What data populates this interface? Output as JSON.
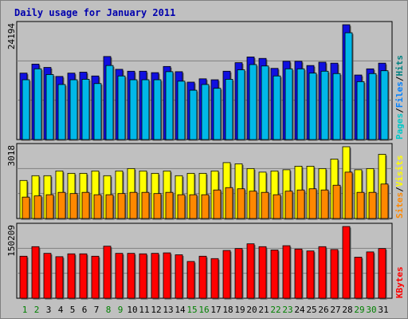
{
  "chart_data": {
    "type": "bar",
    "title": "Daily usage for January 2011",
    "categories": [
      "1",
      "2",
      "3",
      "4",
      "5",
      "6",
      "7",
      "8",
      "9",
      "10",
      "11",
      "12",
      "13",
      "14",
      "15",
      "16",
      "17",
      "18",
      "19",
      "20",
      "21",
      "22",
      "23",
      "24",
      "25",
      "26",
      "27",
      "28",
      "29",
      "30",
      "31"
    ],
    "weekend_days": [
      "1",
      "2",
      "8",
      "9",
      "15",
      "16",
      "22",
      "23",
      "29",
      "30"
    ],
    "panels": [
      {
        "name": "hits-files-pages",
        "ymax_label": "24194",
        "ylim": [
          0,
          24194
        ],
        "legend": [
          "Pages",
          "Files",
          "Hits"
        ],
        "series": [
          {
            "name": "Hits",
            "color": "#1010e0",
            "values": [
              14000,
              15900,
              15200,
              13300,
              14000,
              14200,
              13400,
              17500,
              14800,
              14400,
              14400,
              14100,
              15400,
              14300,
              12100,
              12800,
              12600,
              14400,
              16200,
              17400,
              17100,
              15000,
              16500,
              16500,
              15600,
              16300,
              16100,
              24194,
              13600,
              14900,
              16100
            ]
          },
          {
            "name": "Files",
            "color": "#00b8e8",
            "values": [
              12600,
              14900,
              13700,
              11600,
              12600,
              12700,
              11800,
              15600,
              13400,
              12600,
              12600,
              12600,
              14300,
              12300,
              10400,
              11600,
              10800,
              12700,
              14700,
              15800,
              15500,
              13400,
              14900,
              14900,
              14000,
              14400,
              13900,
              22500,
              12200,
              13900,
              14500
            ]
          },
          {
            "name": "Pages",
            "color": "#00c8c8",
            "values": []
          }
        ]
      },
      {
        "name": "visits-sites",
        "ymax_label": "3018",
        "ylim": [
          0,
          3018
        ],
        "legend": [
          "Sites",
          "Visits"
        ],
        "series": [
          {
            "name": "Visits",
            "color": "#ffff00",
            "values": [
              1600,
              1800,
              1800,
              2000,
              1900,
              1900,
              2000,
              1800,
              2000,
              2100,
              2000,
              1900,
              2000,
              1800,
              1900,
              1900,
              2000,
              2350,
              2300,
              2100,
              1950,
              2000,
              2050,
              2200,
              2200,
              2100,
              2500,
              3018,
              2050,
              2100,
              2700
            ]
          },
          {
            "name": "Sites",
            "color": "#ff8800",
            "values": [
              900,
              950,
              1000,
              1100,
              1050,
              1100,
              1000,
              1000,
              1050,
              1100,
              1100,
              1050,
              1100,
              1000,
              1000,
              1000,
              1200,
              1300,
              1250,
              1150,
              1100,
              1000,
              1150,
              1200,
              1250,
              1200,
              1400,
              1950,
              1100,
              1100,
              1450
            ]
          }
        ]
      },
      {
        "name": "kbytes",
        "ymax_label": "150209",
        "ylim": [
          0,
          150209
        ],
        "legend": [
          "KBytes"
        ],
        "series": [
          {
            "name": "KBytes",
            "color": "#ff0000",
            "values": [
              88000,
              108000,
              94000,
              87000,
              93000,
              93000,
              88000,
              109000,
              94000,
              94000,
              93000,
              94000,
              95000,
              91000,
              77000,
              88000,
              83000,
              100000,
              104000,
              114000,
              108000,
              101000,
              110000,
              103000,
              99000,
              108000,
              102000,
              150209,
              86000,
              97000,
              104000
            ]
          }
        ]
      }
    ]
  },
  "colors": {
    "background": "#c0c0c0",
    "title": "#0000ad",
    "axis_text": "#000000",
    "weekend_label": "#008000",
    "pages": "#00c8c8",
    "files": "#0080ff",
    "hits": "#008080",
    "sites": "#ff8800",
    "visits": "#ffff00",
    "kbytes": "#ff0000",
    "separator": "#000000"
  }
}
